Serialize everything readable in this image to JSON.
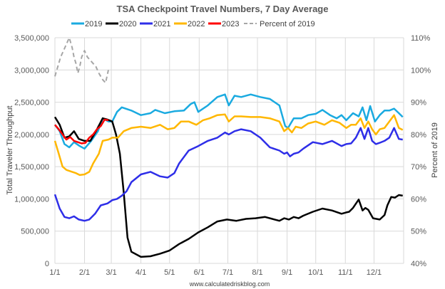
{
  "chart_data": {
    "type": "line",
    "title": "TSA Checkpoint Travel Numbers, 7 Day Average",
    "ylabel": "Total Traveler Throughput",
    "y2label": "Percent of 2019",
    "credit": "www.calculatedriskblog.com",
    "xticks": [
      "1/1",
      "2/1",
      "3/1",
      "4/1",
      "5/1",
      "6/1",
      "7/1",
      "8/1",
      "9/1",
      "10/1",
      "11/1",
      "12/1"
    ],
    "xtick_days": [
      0,
      31,
      59,
      90,
      120,
      151,
      181,
      212,
      243,
      273,
      304,
      334
    ],
    "xlim_days": [
      0,
      365
    ],
    "ylim": [
      0,
      3500000
    ],
    "yticks": [
      "0",
      "500,000",
      "1,000,000",
      "1,500,000",
      "2,000,000",
      "2,500,000",
      "3,000,000",
      "3,500,000"
    ],
    "ytick_values": [
      0,
      500000,
      1000000,
      1500000,
      2000000,
      2500000,
      3000000,
      3500000
    ],
    "y2lim": [
      40,
      110
    ],
    "y2ticks": [
      "40%",
      "50%",
      "60%",
      "70%",
      "80%",
      "90%",
      "100%",
      "110%"
    ],
    "y2tick_values": [
      40,
      50,
      60,
      70,
      80,
      90,
      100,
      110
    ],
    "grid": true,
    "legend_position": "top",
    "series": [
      {
        "name": "2019",
        "color": "#1AAAE0",
        "axis": "left",
        "dash": false,
        "x": [
          0,
          5,
          10,
          15,
          20,
          26,
          31,
          38,
          45,
          50,
          56,
          60,
          65,
          70,
          80,
          90,
          100,
          105,
          115,
          125,
          135,
          142,
          146,
          150,
          160,
          170,
          178,
          182,
          188,
          195,
          205,
          215,
          225,
          235,
          241,
          244,
          250,
          258,
          265,
          273,
          280,
          288,
          295,
          300,
          305,
          312,
          318,
          322,
          326,
          330,
          335,
          340,
          345,
          350,
          355,
          360,
          364
        ],
        "y": [
          2150000,
          2050000,
          1850000,
          1800000,
          1880000,
          1820000,
          1780000,
          1900000,
          2050000,
          2250000,
          2200000,
          2200000,
          2350000,
          2420000,
          2370000,
          2300000,
          2330000,
          2380000,
          2330000,
          2360000,
          2370000,
          2470000,
          2500000,
          2350000,
          2450000,
          2580000,
          2620000,
          2450000,
          2600000,
          2580000,
          2620000,
          2580000,
          2550000,
          2450000,
          2130000,
          2100000,
          2250000,
          2250000,
          2300000,
          2320000,
          2380000,
          2300000,
          2250000,
          2300000,
          2220000,
          2330000,
          2280000,
          2420000,
          2220000,
          2440000,
          2200000,
          2300000,
          2370000,
          2370000,
          2400000,
          2330000,
          2270000
        ]
      },
      {
        "name": "2020",
        "color": "#000000",
        "axis": "left",
        "dash": false,
        "x": [
          0,
          5,
          10,
          15,
          20,
          25,
          31,
          37,
          43,
          50,
          55,
          60,
          64,
          68,
          72,
          76,
          80,
          90,
          100,
          110,
          120,
          130,
          140,
          150,
          160,
          170,
          180,
          190,
          200,
          210,
          220,
          230,
          235,
          240,
          245,
          250,
          255,
          260,
          270,
          280,
          290,
          300,
          305,
          308,
          312,
          318,
          322,
          325,
          328,
          333,
          340,
          345,
          348,
          352,
          356,
          360,
          364
        ],
        "y": [
          2270000,
          2150000,
          1950000,
          1970000,
          2050000,
          1930000,
          1900000,
          1900000,
          2050000,
          2250000,
          2230000,
          2200000,
          2000000,
          1700000,
          1100000,
          400000,
          180000,
          100000,
          110000,
          150000,
          200000,
          300000,
          380000,
          480000,
          560000,
          650000,
          680000,
          660000,
          690000,
          700000,
          720000,
          680000,
          660000,
          700000,
          680000,
          720000,
          700000,
          740000,
          800000,
          850000,
          820000,
          770000,
          790000,
          800000,
          860000,
          990000,
          820000,
          860000,
          830000,
          700000,
          680000,
          750000,
          900000,
          1030000,
          1020000,
          1060000,
          1050000
        ]
      },
      {
        "name": "2021",
        "color": "#2E2EE8",
        "axis": "left",
        "dash": false,
        "x": [
          0,
          5,
          10,
          15,
          20,
          25,
          31,
          36,
          42,
          48,
          55,
          60,
          65,
          70,
          75,
          80,
          90,
          100,
          110,
          118,
          125,
          130,
          140,
          150,
          160,
          170,
          178,
          182,
          188,
          195,
          205,
          215,
          225,
          235,
          240,
          243,
          246,
          250,
          255,
          260,
          270,
          280,
          290,
          300,
          305,
          310,
          315,
          320,
          324,
          328,
          332,
          336,
          340,
          345,
          350,
          355,
          360,
          364
        ],
        "y": [
          1070000,
          850000,
          720000,
          700000,
          730000,
          680000,
          660000,
          680000,
          770000,
          900000,
          930000,
          980000,
          1000000,
          1050000,
          1120000,
          1260000,
          1380000,
          1420000,
          1350000,
          1330000,
          1400000,
          1550000,
          1750000,
          1820000,
          1900000,
          1950000,
          2030000,
          2000000,
          2050000,
          2080000,
          2050000,
          1950000,
          1800000,
          1750000,
          1700000,
          1720000,
          1660000,
          1700000,
          1720000,
          1780000,
          1880000,
          1850000,
          1900000,
          1820000,
          1850000,
          1860000,
          1950000,
          2100000,
          1930000,
          2100000,
          1900000,
          1850000,
          1870000,
          1900000,
          1950000,
          2100000,
          1930000,
          1920000
        ]
      },
      {
        "name": "2022",
        "color": "#FFB700",
        "axis": "left",
        "dash": false,
        "x": [
          0,
          4,
          8,
          12,
          18,
          22,
          26,
          31,
          36,
          40,
          46,
          50,
          56,
          60,
          66,
          72,
          80,
          90,
          100,
          110,
          118,
          125,
          132,
          140,
          148,
          155,
          162,
          170,
          178,
          182,
          188,
          195,
          205,
          215,
          225,
          235,
          240,
          244,
          248,
          252,
          258,
          265,
          273,
          282,
          290,
          298,
          305,
          310,
          315,
          320,
          324,
          328,
          332,
          336,
          340,
          345,
          350,
          355,
          360,
          364
        ],
        "y": [
          1900000,
          1700000,
          1500000,
          1450000,
          1420000,
          1400000,
          1370000,
          1380000,
          1420000,
          1550000,
          1700000,
          1900000,
          1920000,
          1950000,
          1950000,
          2050000,
          2100000,
          2120000,
          2100000,
          2150000,
          2080000,
          2100000,
          2200000,
          2200000,
          2150000,
          2220000,
          2250000,
          2300000,
          2310000,
          2200000,
          2280000,
          2280000,
          2270000,
          2270000,
          2250000,
          2200000,
          2050000,
          2100000,
          2030000,
          2120000,
          2100000,
          2170000,
          2200000,
          2150000,
          2220000,
          2180000,
          2100000,
          2150000,
          2150000,
          2250000,
          2100000,
          2200000,
          2080000,
          2000000,
          2080000,
          2100000,
          2200000,
          2300000,
          2100000,
          2070000
        ]
      },
      {
        "name": "2023",
        "color": "#FF0000",
        "axis": "left",
        "dash": false,
        "x": [
          0,
          4,
          8,
          12,
          16,
          20,
          24,
          28,
          32,
          36,
          40,
          44,
          48,
          52,
          56
        ],
        "y": [
          2150000,
          2080000,
          2000000,
          1920000,
          1960000,
          1900000,
          1880000,
          1860000,
          1870000,
          1950000,
          2000000,
          2080000,
          2130000,
          2230000,
          2220000
        ]
      },
      {
        "name": "Percent of 2019",
        "color": "#A6A6A6",
        "axis": "right",
        "dash": true,
        "x": [
          0,
          3,
          6,
          9,
          12,
          15,
          18,
          20,
          22,
          24,
          26,
          28,
          31,
          34,
          37,
          40,
          43,
          46,
          50,
          53,
          56
        ],
        "y": [
          98,
          101,
          104,
          106,
          108,
          110,
          107,
          104,
          102,
          99,
          101,
          104,
          106,
          104,
          103,
          102,
          101,
          99,
          97,
          96,
          100
        ]
      }
    ]
  }
}
